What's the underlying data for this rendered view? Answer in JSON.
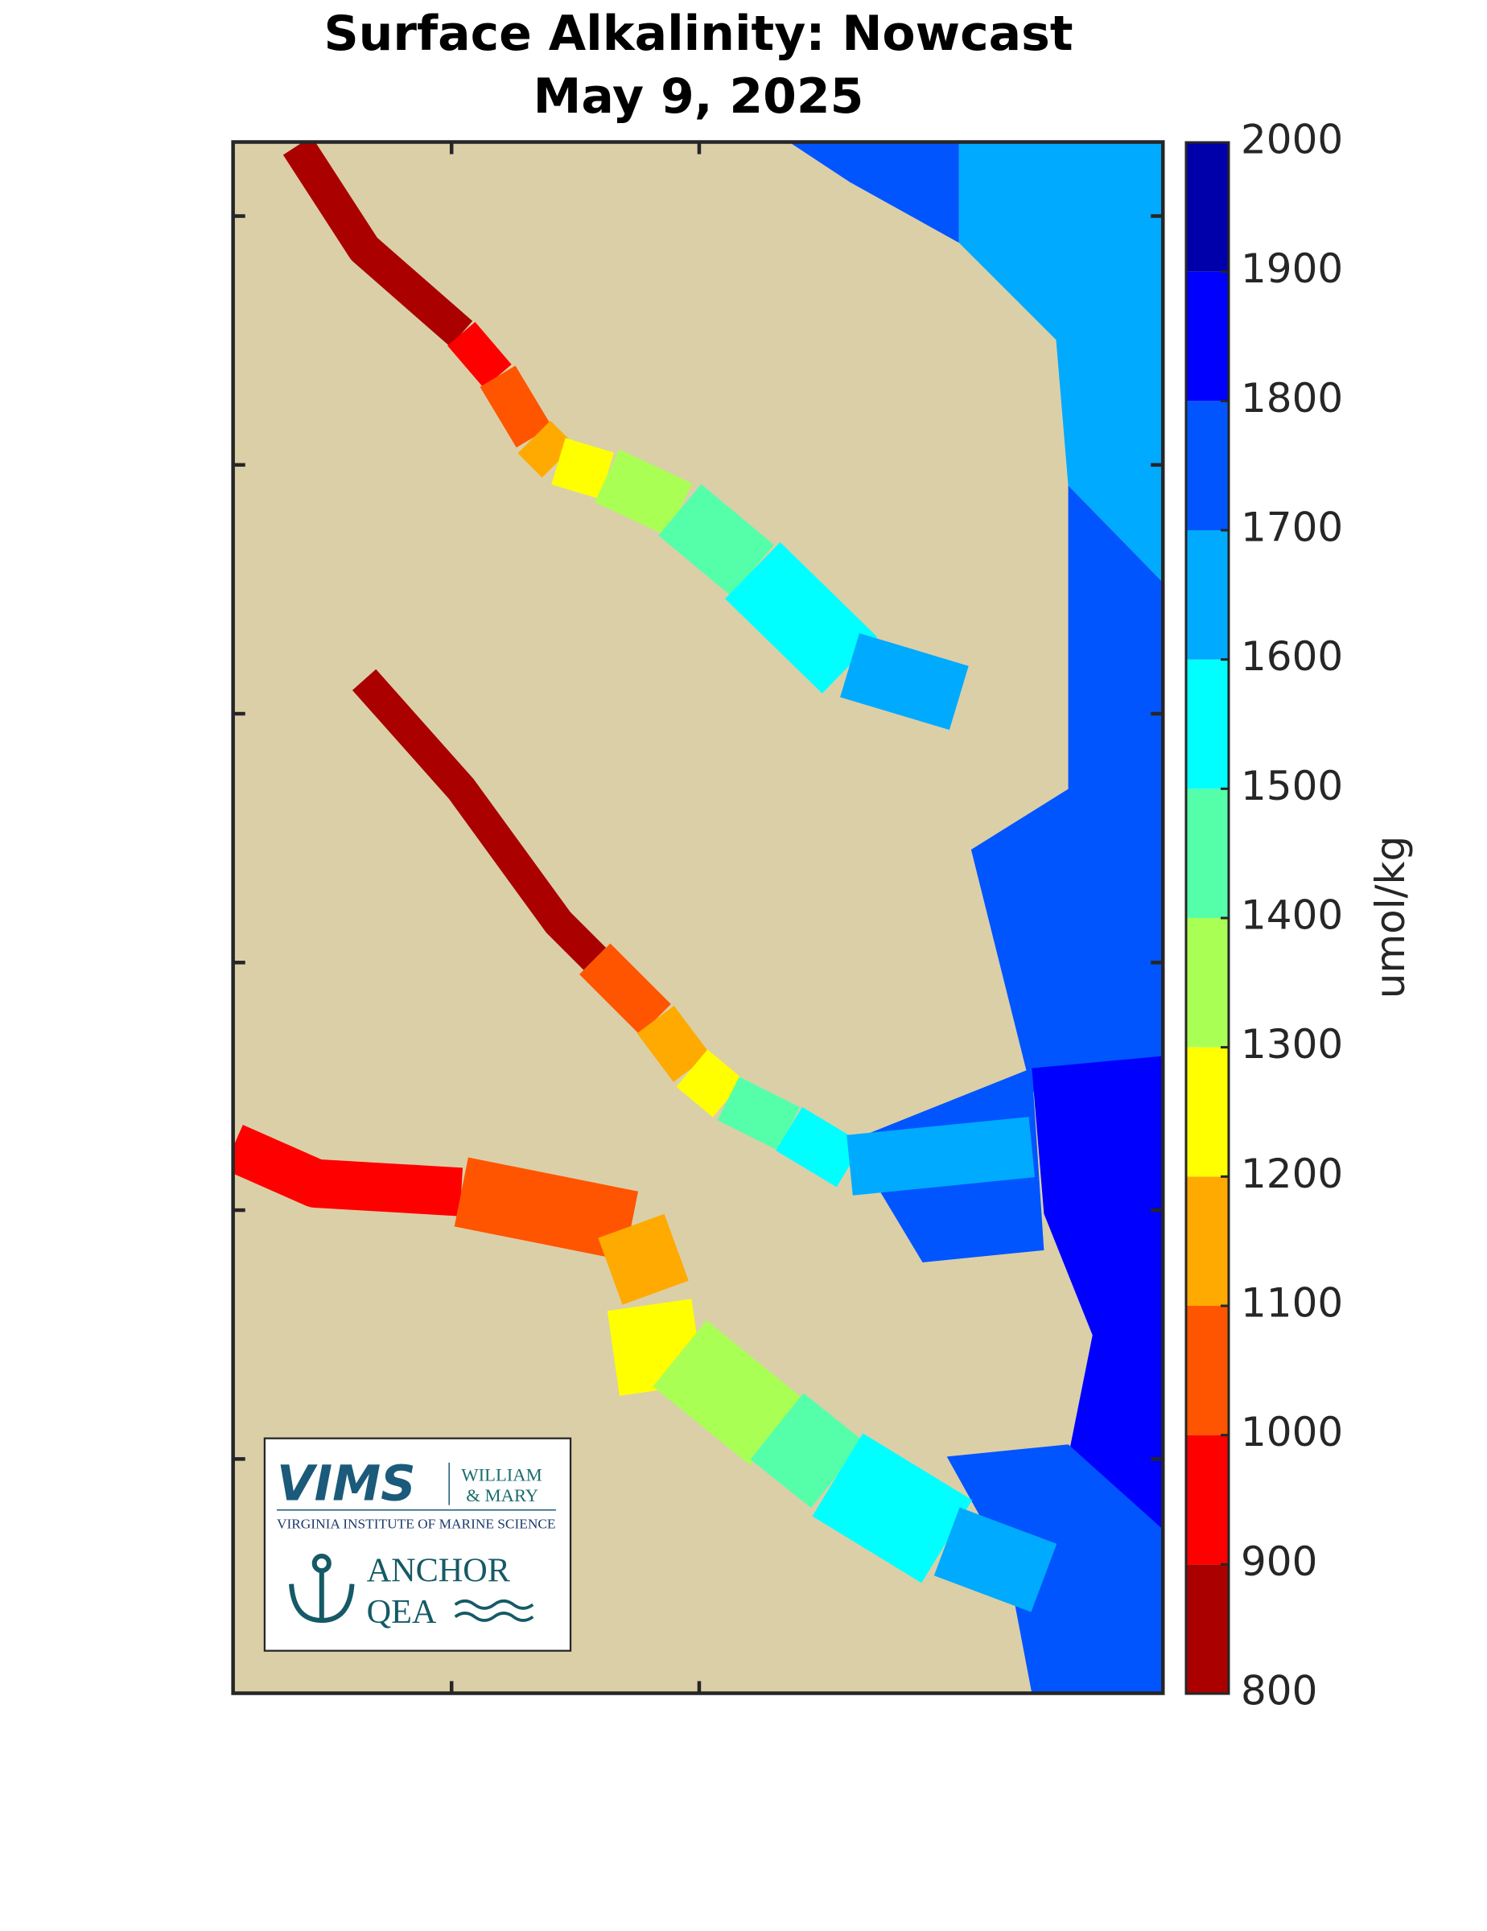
{
  "chart_data": {
    "type": "map",
    "title": "Surface Alkalinity: Nowcast",
    "subtitle": "May 9, 2025",
    "colorbar": {
      "label": "umol/kg",
      "lim": [
        800,
        2000
      ],
      "ticks": [
        800,
        900,
        1000,
        1100,
        1200,
        1300,
        1400,
        1500,
        1600,
        1700,
        1800,
        1900,
        2000
      ],
      "colors": [
        "#aa0000",
        "#ff0000",
        "#ff5500",
        "#ffaa00",
        "#ffff00",
        "#aaff55",
        "#55ffaa",
        "#00ffff",
        "#00aaff",
        "#0055ff",
        "#0000ff",
        "#0000aa"
      ]
    },
    "regions": [
      1750,
      1650,
      1750,
      1850,
      1750,
      1750,
      850,
      950,
      1050,
      1150,
      1250,
      1350,
      1450,
      1550,
      1650,
      850,
      1050,
      1150,
      1250,
      1450,
      1550,
      1650,
      950,
      1050,
      1150,
      1250,
      1350,
      1450,
      1550,
      1650
    ]
  },
  "logos": {
    "vims": "VIMS",
    "william": "WILLIAM",
    "mary": "& MARY",
    "vims_full": "VIRGINIA INSTITUTE OF MARINE SCIENCE",
    "anchor": "ANCHOR",
    "qea": "QEA"
  }
}
